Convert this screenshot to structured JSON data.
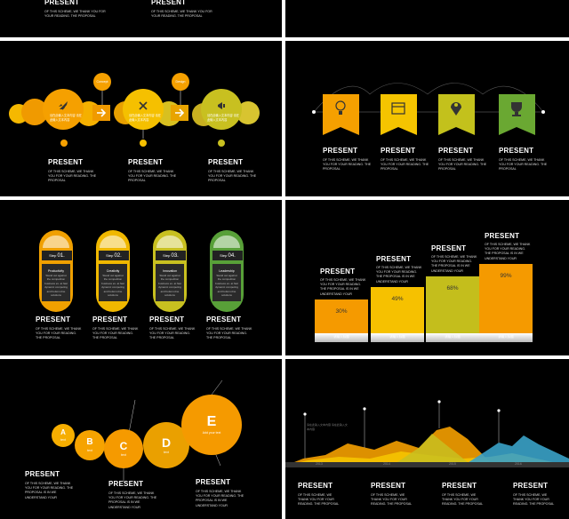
{
  "common": {
    "present": "PRESENT",
    "desc_short": "OF THIS SCHEME, WE THANK YOU FOR YOUR READING. THE PROPOSAL",
    "desc_long": "OF THIS SCHEME, WE THANK YOU FOR YOUR READING. THE PROPOSAL IS IN WE UNDERSTAND YOUR"
  },
  "slide2": {
    "labels": [
      "Concept",
      "Design"
    ],
    "items": [
      {
        "icon": "rocket-icon",
        "text": "请在此输入文本内容 请在此输入文本内容",
        "color": "#f5a000"
      },
      {
        "icon": "tools-icon",
        "text": "请在此输入文本内容 请在此输入文本内容",
        "color": "#f5c000"
      },
      {
        "icon": "megaphone-icon",
        "text": "请在此输入文本内容 请在此输入文本内容",
        "color": "#c8c020"
      }
    ]
  },
  "slide3": {
    "items": [
      {
        "icon": "lightbulb-icon",
        "color": "#f5a000"
      },
      {
        "icon": "calendar-icon",
        "color": "#f5c400"
      },
      {
        "icon": "map-pin-icon",
        "color": "#c3c11c"
      },
      {
        "icon": "trophy-icon",
        "color": "#6aa832"
      }
    ]
  },
  "slide4": {
    "items": [
      {
        "step": "Step",
        "num": "01.",
        "title": "Productivity",
        "color": "#f0a000"
      },
      {
        "step": "Step",
        "num": "02.",
        "title": "Creativity",
        "color": "#f0b800"
      },
      {
        "step": "Step",
        "num": "03.",
        "title": "Innovation",
        "color": "#c8c020"
      },
      {
        "step": "Step",
        "num": "04.",
        "title": "Leadership",
        "color": "#58a038"
      }
    ],
    "body": "Stand out against the competition business ex. at fast dynamic competing and bottom-line solutions"
  },
  "slide5": {
    "bars": [
      {
        "pct": "30%",
        "color": "#f59a00",
        "label": "请输入标题"
      },
      {
        "pct": "49%",
        "color": "#f6c100",
        "label": "请输入标题"
      },
      {
        "pct": "68%",
        "color": "#c4be1c",
        "label": "请输入标题"
      },
      {
        "pct": "99%",
        "color": "#f59a00",
        "label": "请输入标题"
      }
    ]
  },
  "slide6": {
    "circles": [
      {
        "letter": "A",
        "sub": "text",
        "color": "#f6ae00"
      },
      {
        "letter": "B",
        "sub": "text",
        "color": "#f6a300"
      },
      {
        "letter": "C",
        "sub": "text",
        "color": "#f59a00"
      },
      {
        "letter": "D",
        "sub": "text",
        "color": "#eaa000"
      },
      {
        "letter": "E",
        "sub": "Add your text",
        "color": "#f59a00"
      }
    ]
  },
  "slide7": {
    "years": [
      "2013",
      "2014",
      "2015",
      "2016"
    ],
    "note": "请在此输入文本内容 请在此输入文本内容"
  }
}
